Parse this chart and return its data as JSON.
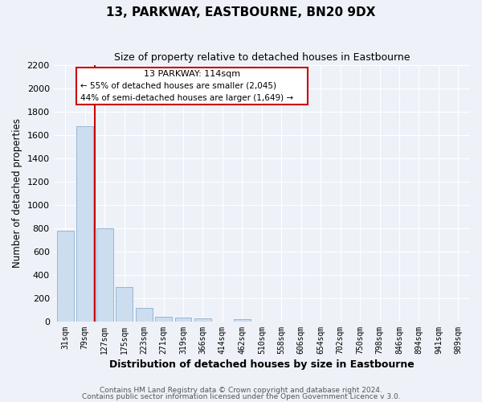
{
  "title": "13, PARKWAY, EASTBOURNE, BN20 9DX",
  "subtitle": "Size of property relative to detached houses in Eastbourne",
  "xlabel": "Distribution of detached houses by size in Eastbourne",
  "ylabel": "Number of detached properties",
  "bar_labels": [
    "31sqm",
    "79sqm",
    "127sqm",
    "175sqm",
    "223sqm",
    "271sqm",
    "319sqm",
    "366sqm",
    "414sqm",
    "462sqm",
    "510sqm",
    "558sqm",
    "606sqm",
    "654sqm",
    "702sqm",
    "750sqm",
    "798sqm",
    "846sqm",
    "894sqm",
    "941sqm",
    "989sqm"
  ],
  "bar_values": [
    780,
    1670,
    800,
    295,
    115,
    40,
    32,
    30,
    0,
    22,
    0,
    0,
    0,
    0,
    0,
    0,
    0,
    0,
    0,
    0,
    0
  ],
  "bar_color": "#ccddf0",
  "bar_edge_color": "#8ab0d0",
  "property_line_x": 1.5,
  "property_line_color": "#cc0000",
  "annotation_title": "13 PARKWAY: 114sqm",
  "annotation_line1": "← 55% of detached houses are smaller (2,045)",
  "annotation_line2": "44% of semi-detached houses are larger (1,649) →",
  "annotation_box_edge": "#cc0000",
  "ylim": [
    0,
    2200
  ],
  "yticks": [
    0,
    200,
    400,
    600,
    800,
    1000,
    1200,
    1400,
    1600,
    1800,
    2000,
    2200
  ],
  "footer_line1": "Contains HM Land Registry data © Crown copyright and database right 2024.",
  "footer_line2": "Contains public sector information licensed under the Open Government Licence v 3.0.",
  "background_color": "#eef2f8",
  "grid_color": "#ffffff",
  "figsize": [
    6.0,
    5.0
  ],
  "dpi": 100
}
